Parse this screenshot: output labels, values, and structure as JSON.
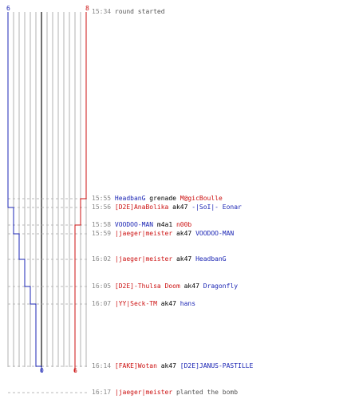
{
  "labels": {
    "team_blue_start": "6",
    "team_red_start": "8",
    "team_blue_end": "0",
    "team_red_end": "6"
  },
  "colors": {
    "blue": "#1b25b4",
    "red": "#cc1111",
    "grid": "#b0b0b0",
    "center": "#707070",
    "dash": "#b8b8b8"
  },
  "events": [
    {
      "time": "15:34",
      "parts": [
        {
          "t": "round started",
          "c": "plain"
        }
      ]
    },
    {
      "time": "15:55",
      "parts": [
        {
          "t": "HeadbanG",
          "c": "blue"
        },
        {
          "t": " grenade ",
          "c": "wpn"
        },
        {
          "t": "M@gicBoulle",
          "c": "red"
        }
      ]
    },
    {
      "time": "15:56",
      "parts": [
        {
          "t": "[D2E]AnaBolika",
          "c": "red"
        },
        {
          "t": " ak47 ",
          "c": "wpn"
        },
        {
          "t": "-|SoI|- Eonar",
          "c": "blue"
        }
      ]
    },
    {
      "time": "15:58",
      "parts": [
        {
          "t": "VOODOO-MAN",
          "c": "blue"
        },
        {
          "t": " m4a1 ",
          "c": "wpn"
        },
        {
          "t": "n00b",
          "c": "red"
        }
      ]
    },
    {
      "time": "15:59",
      "parts": [
        {
          "t": "|jaeger|meister",
          "c": "red"
        },
        {
          "t": " ak47 ",
          "c": "wpn"
        },
        {
          "t": "VOODOO-MAN",
          "c": "blue"
        }
      ]
    },
    {
      "time": "16:02",
      "parts": [
        {
          "t": "|jaeger|meister",
          "c": "red"
        },
        {
          "t": " ak47 ",
          "c": "wpn"
        },
        {
          "t": "HeadbanG",
          "c": "blue"
        }
      ]
    },
    {
      "time": "16:05",
      "parts": [
        {
          "t": "[D2E]-Thulsa Doom",
          "c": "red"
        },
        {
          "t": " ak47 ",
          "c": "wpn"
        },
        {
          "t": "Dragonfly",
          "c": "blue"
        }
      ]
    },
    {
      "time": "16:07",
      "parts": [
        {
          "t": "|YY|Seck-TM",
          "c": "red"
        },
        {
          "t": " ak47 ",
          "c": "wpn"
        },
        {
          "t": "hans",
          "c": "blue"
        }
      ]
    },
    {
      "time": "16:14",
      "parts": [
        {
          "t": "[FAKE]Wotan",
          "c": "red"
        },
        {
          "t": " ak47 ",
          "c": "wpn"
        },
        {
          "t": "[D2E]JANUS-PASTILLE",
          "c": "blue"
        }
      ]
    },
    {
      "time": "16:17",
      "parts": [
        {
          "t": "|jaeger|meister",
          "c": "red"
        },
        {
          "t": " planted the bomb",
          "c": "plain"
        }
      ]
    }
  ]
}
